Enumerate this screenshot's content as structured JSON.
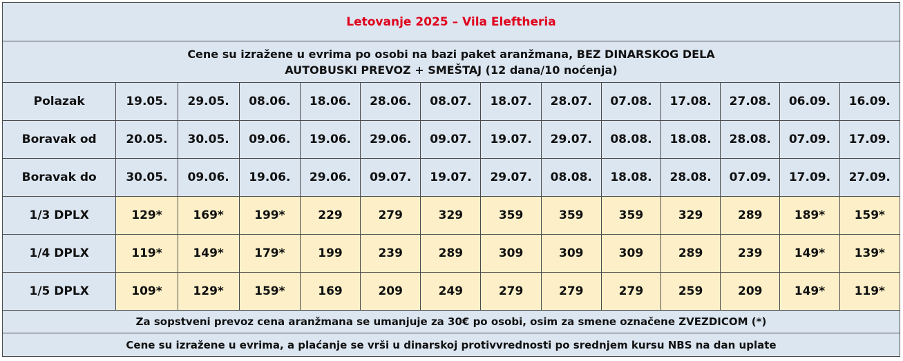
{
  "title": "Letovanje 2025 – Vila Eleftheria",
  "subtitle_line1": "Cene su izražene u evrima po osobi na bazi paket aranžmana, BEZ DINARSKOG DELA",
  "subtitle_line2": "AUTOBUSKI PREVOZ + SMEŠTAJ (12 dana/10 noćenja)",
  "rows": [
    {
      "label": "Polazak",
      "cells": [
        "19.05.",
        "29.05.",
        "08.06.",
        "18.06.",
        "28.06.",
        "08.07.",
        "18.07.",
        "28.07.",
        "07.08.",
        "17.08.",
        "27.08.",
        "06.09.",
        "16.09."
      ]
    },
    {
      "label": "Boravak od",
      "cells": [
        "20.05.",
        "30.05.",
        "09.06.",
        "19.06.",
        "29.06.",
        "09.07.",
        "19.07.",
        "29.07.",
        "08.08.",
        "18.08.",
        "28.08.",
        "07.09.",
        "17.09."
      ]
    },
    {
      "label": "Boravak do",
      "cells": [
        "30.05.",
        "09.06.",
        "19.06.",
        "29.06.",
        "09.07.",
        "19.07.",
        "29.07.",
        "08.08.",
        "18.08.",
        "28.08.",
        "07.09.",
        "17.09.",
        "27.09."
      ]
    },
    {
      "label": "1/3 DPLX",
      "cells": [
        "129*",
        "169*",
        "199*",
        "229",
        "279",
        "329",
        "359",
        "359",
        "359",
        "329",
        "289",
        "189*",
        "159*"
      ]
    },
    {
      "label": "1/4 DPLX",
      "cells": [
        "119*",
        "149*",
        "179*",
        "199",
        "239",
        "289",
        "309",
        "309",
        "309",
        "289",
        "239",
        "149*",
        "139*"
      ]
    },
    {
      "label": "1/5 DPLX",
      "cells": [
        "109*",
        "129*",
        "159*",
        "169",
        "209",
        "249",
        "279",
        "279",
        "279",
        "259",
        "209",
        "149*",
        "119*"
      ]
    }
  ],
  "note1": "Za sopstveni prevoz cena aranžmana se umanjuje za 30€ po osobi, osim za smene označene ZVEZDICOM (*)",
  "note2": "Cene su izražene u evrima, a plaćanje se vrši u dinarskoj protivvrednosti po srednjem kursu NBS na dan uplate"
}
